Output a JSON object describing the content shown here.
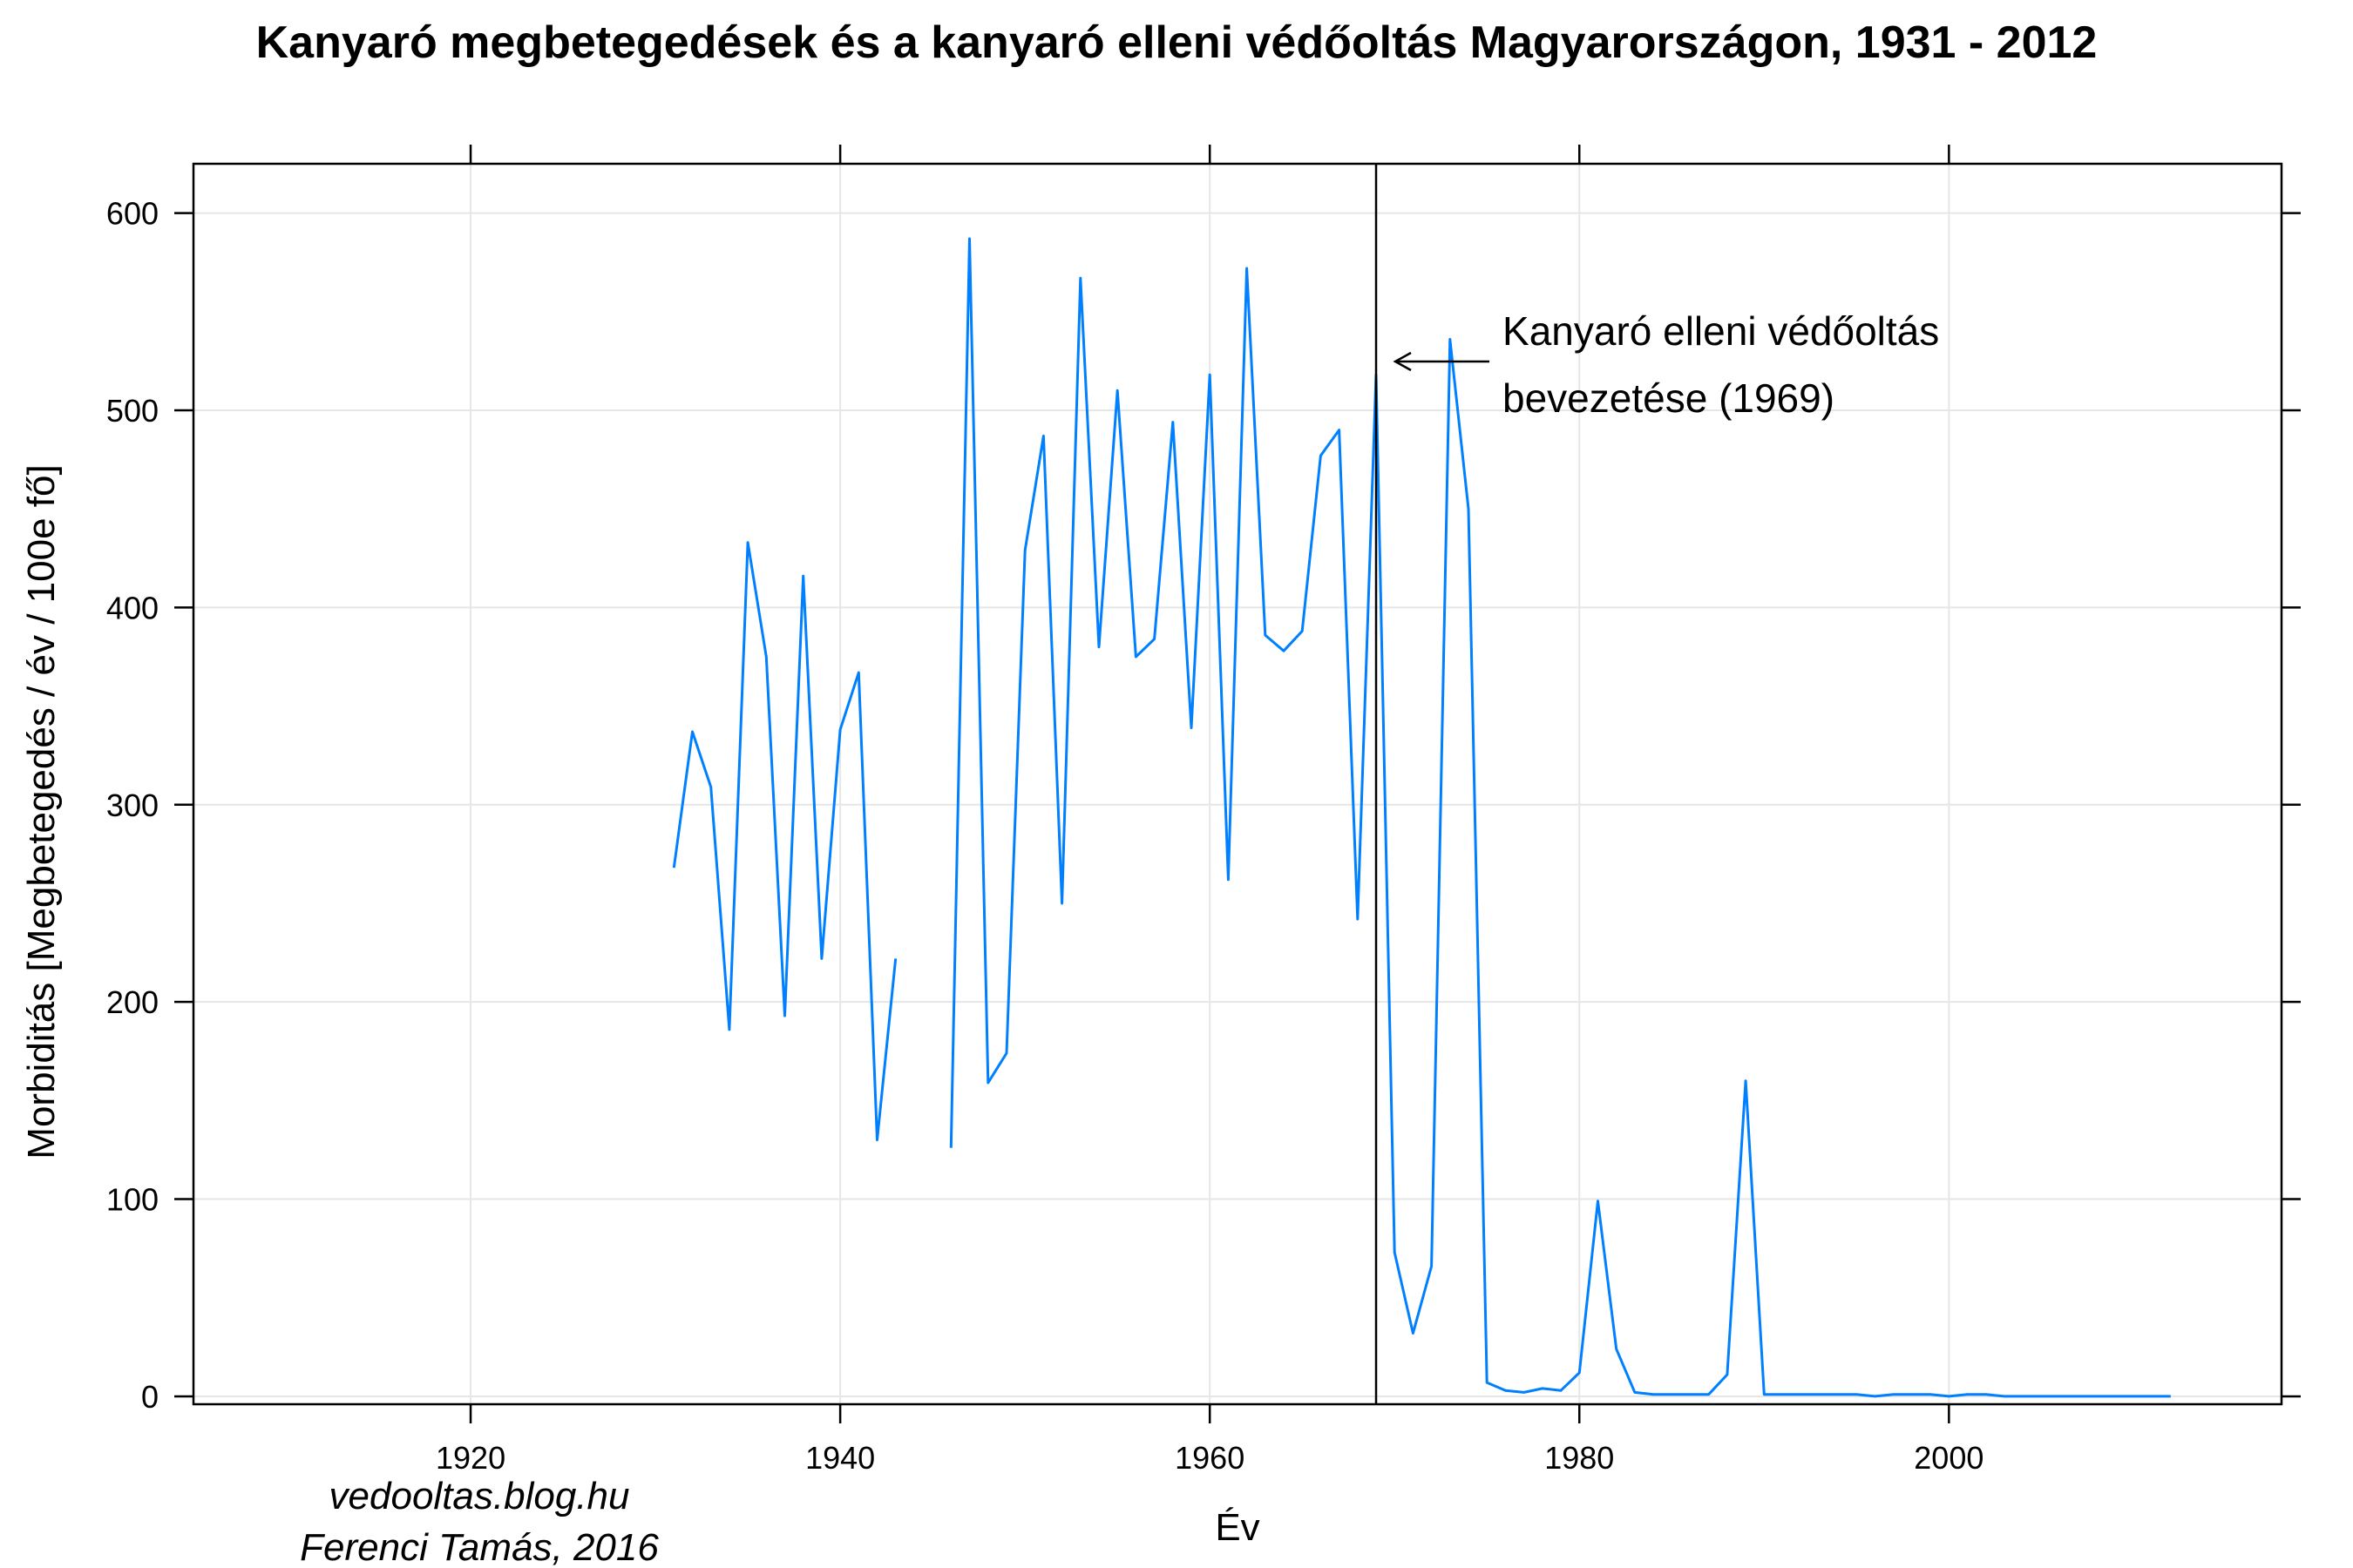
{
  "chart_data": {
    "type": "line",
    "title": "Kanyaró megbetegedések és a kanyaró elleni védőoltás Magyarországon, 1931 - 2012",
    "xlabel": "Év",
    "ylabel": "Morbiditás [Megbetegedés / év / 100e fő]",
    "xlim": [
      1905,
      2018
    ],
    "ylim": [
      -4,
      625
    ],
    "x_ticks": [
      "1920",
      "1940",
      "1960",
      "1980",
      "2000"
    ],
    "y_ticks": [
      "0",
      "100",
      "200",
      "300",
      "400",
      "500",
      "600"
    ],
    "grid": true,
    "line_color": "#0080ff",
    "series": [
      {
        "x": [
          1931,
          1932,
          1933,
          1934,
          1935,
          1936,
          1937,
          1938,
          1939,
          1940,
          1941,
          1942,
          1943,
          1944,
          1945,
          1946,
          1947,
          1948,
          1949,
          1950,
          1951,
          1952,
          1953,
          1954,
          1955,
          1956,
          1957,
          1958,
          1959,
          1960,
          1961,
          1962,
          1963,
          1964,
          1965,
          1966,
          1967,
          1968,
          1969,
          1970,
          1971,
          1972,
          1973,
          1974,
          1975,
          1976,
          1977,
          1978,
          1979,
          1980,
          1981,
          1982,
          1983,
          1984,
          1985,
          1986,
          1987,
          1988,
          1989,
          1990,
          1991,
          1992,
          1993,
          1994,
          1995,
          1996,
          1997,
          1998,
          1999,
          2000,
          2001,
          2002,
          2003,
          2004,
          2005,
          2006,
          2007,
          2008,
          2009,
          2010,
          2011,
          2012
        ],
        "y": [
          268,
          337,
          309,
          186,
          433,
          375,
          193,
          416,
          222,
          338,
          367,
          130,
          222,
          null,
          null,
          126,
          587,
          159,
          174,
          429,
          487,
          250,
          567,
          380,
          510,
          375,
          384,
          494,
          339,
          518,
          262,
          572,
          386,
          378,
          388,
          477,
          490,
          242,
          518,
          73,
          32,
          66,
          536,
          450,
          7,
          3,
          2,
          4,
          3,
          12,
          99,
          24,
          2,
          1,
          1,
          1,
          1,
          11,
          160,
          1,
          1,
          1,
          1,
          1,
          1,
          0,
          1,
          1,
          1,
          0,
          1,
          1,
          0,
          0,
          0,
          0,
          0,
          0,
          0,
          0,
          0,
          0
        ]
      }
    ],
    "vline": {
      "x": 1969
    },
    "annotation": {
      "line1": "Kanyaró elleni védőoltás",
      "line2": "bevezetése (1969)"
    }
  },
  "credits": {
    "blog": "vedooltas.blog.hu",
    "author": "Ferenci Tamás, 2016"
  }
}
